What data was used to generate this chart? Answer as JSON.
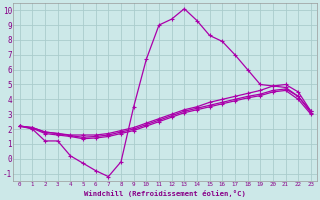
{
  "xlabel": "Windchill (Refroidissement éolien,°C)",
  "background_color": "#cce8e8",
  "grid_color": "#aacccc",
  "line_color": "#aa00aa",
  "xlim": [
    -0.5,
    23.5
  ],
  "ylim": [
    -1.5,
    10.5
  ],
  "xticks": [
    0,
    1,
    2,
    3,
    4,
    5,
    6,
    7,
    8,
    9,
    10,
    11,
    12,
    13,
    14,
    15,
    16,
    17,
    18,
    19,
    20,
    21,
    22,
    23
  ],
  "yticks": [
    -1,
    0,
    1,
    2,
    3,
    4,
    5,
    6,
    7,
    8,
    9,
    10
  ],
  "line1_x": [
    0,
    1,
    2,
    3,
    4,
    5,
    6,
    7,
    8,
    9,
    10,
    11,
    12,
    13,
    14,
    15,
    16,
    17,
    18,
    19,
    20,
    21,
    22,
    23
  ],
  "line1_y": [
    2.2,
    2.0,
    1.2,
    1.2,
    0.2,
    -0.3,
    -0.8,
    -1.2,
    -0.2,
    3.5,
    6.7,
    9.0,
    9.4,
    10.1,
    9.3,
    8.3,
    7.9,
    7.0,
    6.0,
    5.0,
    4.9,
    4.8,
    4.2,
    3.2
  ],
  "line2_x": [
    0,
    1,
    2,
    3,
    4,
    5,
    6,
    7,
    8,
    9,
    10,
    11,
    12,
    13,
    14,
    15,
    16,
    17,
    18,
    19,
    20,
    21,
    22,
    23
  ],
  "line2_y": [
    2.2,
    2.1,
    1.8,
    1.7,
    1.6,
    1.6,
    1.6,
    1.7,
    1.9,
    2.1,
    2.4,
    2.7,
    3.0,
    3.3,
    3.5,
    3.8,
    4.0,
    4.2,
    4.4,
    4.6,
    4.9,
    5.0,
    4.5,
    3.2
  ],
  "line3_x": [
    0,
    1,
    2,
    3,
    4,
    5,
    6,
    7,
    8,
    9,
    10,
    11,
    12,
    13,
    14,
    15,
    16,
    17,
    18,
    19,
    20,
    21,
    22,
    23
  ],
  "line3_y": [
    2.2,
    2.1,
    1.8,
    1.7,
    1.55,
    1.45,
    1.5,
    1.6,
    1.8,
    2.0,
    2.3,
    2.6,
    2.9,
    3.2,
    3.4,
    3.6,
    3.8,
    4.0,
    4.2,
    4.35,
    4.6,
    4.7,
    4.2,
    3.1
  ],
  "line4_x": [
    0,
    1,
    2,
    3,
    4,
    5,
    6,
    7,
    8,
    9,
    10,
    11,
    12,
    13,
    14,
    15,
    16,
    17,
    18,
    19,
    20,
    21,
    22,
    23
  ],
  "line4_y": [
    2.2,
    2.05,
    1.7,
    1.6,
    1.5,
    1.35,
    1.4,
    1.5,
    1.7,
    1.9,
    2.2,
    2.5,
    2.8,
    3.1,
    3.3,
    3.5,
    3.7,
    3.9,
    4.1,
    4.25,
    4.5,
    4.6,
    4.0,
    3.0
  ]
}
